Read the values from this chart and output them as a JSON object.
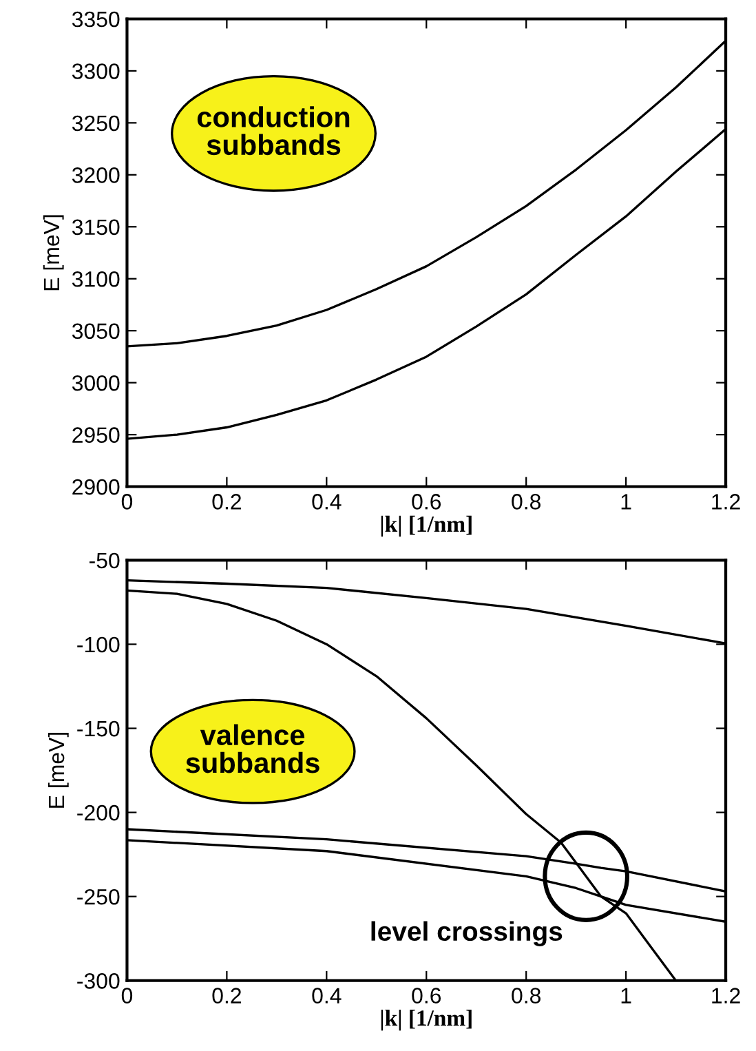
{
  "chart_data": [
    {
      "type": "line",
      "xlabel": "|k| [1/nm]",
      "ylabel": "E [meV]",
      "x": [
        0,
        0.1,
        0.2,
        0.3,
        0.4,
        0.5,
        0.6,
        0.7,
        0.8,
        0.9,
        1.0,
        1.1,
        1.2
      ],
      "series": [
        {
          "color": "#000000",
          "values": [
            3035,
            3038,
            3045,
            3055,
            3070,
            3090,
            3112,
            3140,
            3170,
            3205,
            3243,
            3284,
            3329
          ]
        },
        {
          "color": "#000000",
          "values": [
            2946,
            2950,
            2957,
            2969,
            2983,
            3003,
            3025,
            3054,
            3085,
            3123,
            3160,
            3203,
            3244
          ]
        }
      ],
      "xlim": [
        0,
        1.2
      ],
      "xticks": [
        0,
        0.2,
        0.4,
        0.6,
        0.8,
        1,
        1.2
      ],
      "ylim": [
        2900,
        3350
      ],
      "yticks": [
        2900,
        2950,
        3000,
        3050,
        3100,
        3150,
        3200,
        3250,
        3300,
        3350
      ],
      "grid": false,
      "legend": false,
      "annotations": [
        "conduction\nsubbands"
      ]
    },
    {
      "type": "line",
      "xlabel": "|k| [1/nm]",
      "ylabel": "E [meV]",
      "series": [
        {
          "color": "#000000",
          "x": [
            0,
            0.2,
            0.4,
            0.6,
            0.8,
            1.0,
            1.2
          ],
          "values": [
            -62,
            -64,
            -66.5,
            -72.5,
            -79,
            -89,
            -99.5
          ]
        },
        {
          "color": "#000000",
          "x": [
            0,
            0.1,
            0.2,
            0.3,
            0.4,
            0.5,
            0.6,
            0.7,
            0.8,
            0.87,
            0.9,
            0.95,
            1.0,
            1.05,
            1.1
          ],
          "values": [
            -68,
            -70,
            -76,
            -86,
            -100,
            -119,
            -144,
            -172,
            -201,
            -218,
            -230,
            -250,
            -260,
            -280,
            -300
          ]
        },
        {
          "color": "#000000",
          "x": [
            0,
            0.4,
            0.8,
            0.9,
            0.95,
            1.0,
            1.2
          ],
          "values": [
            -210,
            -216,
            -226,
            -230.5,
            -233,
            -235,
            -247
          ]
        },
        {
          "color": "#000000",
          "x": [
            0,
            0.4,
            0.8,
            0.9,
            0.95,
            1.0,
            1.2
          ],
          "values": [
            -216.5,
            -223,
            -238,
            -245,
            -250,
            -255,
            -265
          ]
        }
      ],
      "xlim": [
        0,
        1.2
      ],
      "xticks": [
        0,
        0.2,
        0.4,
        0.6,
        0.8,
        1,
        1.2
      ],
      "ylim": [
        -300,
        -50
      ],
      "yticks": [
        -300,
        -250,
        -200,
        -150,
        -100,
        -50
      ],
      "grid": false,
      "legend": false,
      "annotations": [
        "valence\nsubbands",
        {
          "text": "level crossings",
          "x": 0.92,
          "y": -238
        }
      ]
    }
  ]
}
